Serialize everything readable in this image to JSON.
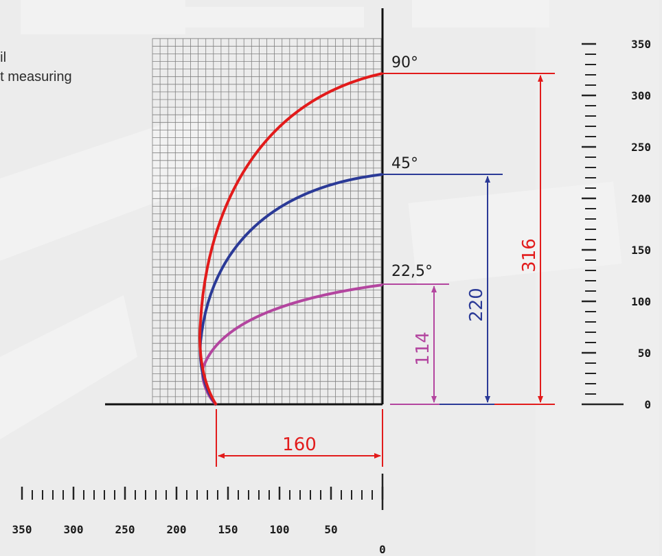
{
  "caption": {
    "line1": "oil",
    "line2": "ht measuring"
  },
  "colors": {
    "deg90": "#e21b1b",
    "deg45": "#2b3a97",
    "deg22_5": "#b3459f",
    "axis": "#111111",
    "grid": "#7f7f7f",
    "background": "#ececec"
  },
  "curves": {
    "deg90": {
      "angle_label": "90°",
      "height_label": "316",
      "height": 316
    },
    "deg45": {
      "angle_label": "45°",
      "height_label": "220",
      "height": 220
    },
    "deg22_5": {
      "angle_label": "22,5°",
      "height_label": "114",
      "height": 114
    }
  },
  "width_dimension": {
    "label": "160",
    "value": 160
  },
  "vertical_scale": {
    "ticks": [
      "350",
      "300",
      "250",
      "200",
      "150",
      "100",
      "50",
      "0"
    ]
  },
  "horizontal_scale": {
    "ticks": [
      "350",
      "300",
      "250",
      "200",
      "150",
      "100",
      "50",
      "0"
    ]
  }
}
